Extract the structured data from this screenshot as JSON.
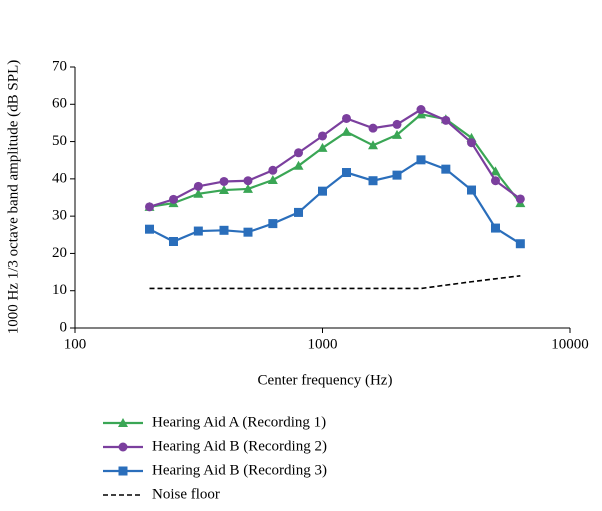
{
  "chart_data": {
    "type": "line",
    "x_label": "Center frequency (Hz)",
    "y_label": "1000 Hz 1/3 octave band amplitude (dB SPL)",
    "xscale": "log",
    "x": [
      200,
      250,
      315,
      400,
      500,
      630,
      800,
      1000,
      1250,
      1600,
      2000,
      2500,
      3150,
      4000,
      5000,
      6300
    ],
    "xlim": [
      100,
      10000
    ],
    "xticks": [
      100,
      1000,
      10000
    ],
    "ylim": [
      0,
      70
    ],
    "yticks": [
      0,
      10,
      20,
      30,
      40,
      50,
      60,
      70
    ],
    "grid": false,
    "legend": "bottom",
    "series": [
      {
        "name": "Hearing Aid A (Recording 1)",
        "color": "#3aa655",
        "marker": "triangle",
        "values": [
          32.5,
          33.5,
          36,
          37,
          37.3,
          39.7,
          43.5,
          48.3,
          52.6,
          49,
          51.8,
          57.3,
          56,
          51,
          42,
          33.5
        ]
      },
      {
        "name": "Hearing Aid B (Recording 2)",
        "color": "#7b3f9e",
        "marker": "circle",
        "values": [
          32.5,
          34.5,
          38,
          39.3,
          39.5,
          42.3,
          47,
          51.5,
          56.2,
          53.6,
          54.6,
          58.6,
          55.7,
          49.7,
          39.5,
          34.6
        ]
      },
      {
        "name": "Hearing Aid B (Recording 3)",
        "color": "#2a6ebb",
        "marker": "square",
        "values": [
          26.5,
          23.2,
          26,
          26.2,
          25.7,
          28,
          31,
          36.7,
          41.7,
          39.5,
          41,
          45.1,
          42.6,
          37,
          26.8,
          22.6
        ]
      },
      {
        "name": "Noise floor",
        "color": "#000000",
        "marker": "none",
        "dash": true,
        "values": [
          10.6,
          10.6,
          10.6,
          10.6,
          10.6,
          10.6,
          10.6,
          10.6,
          10.6,
          10.6,
          10.6,
          10.6,
          11.5,
          12.4,
          13.2,
          14
        ]
      }
    ]
  }
}
